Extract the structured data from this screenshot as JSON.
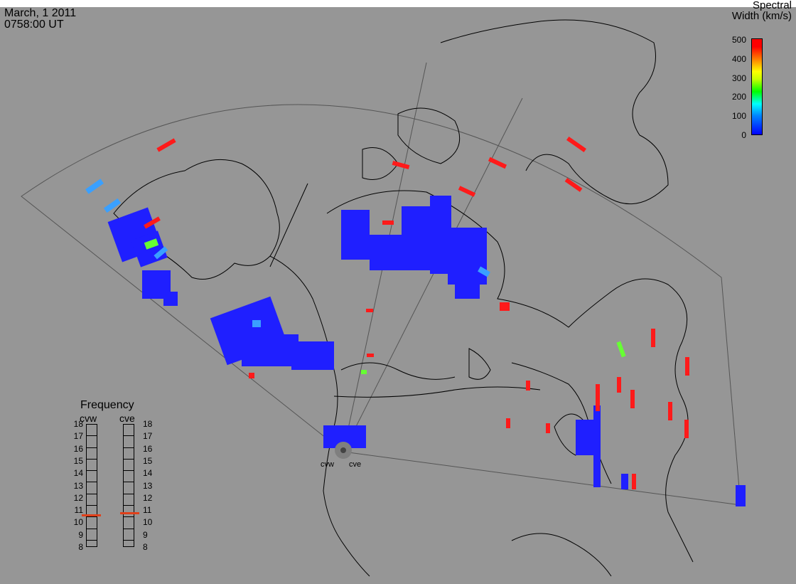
{
  "header": {
    "date": "March, 1 2011",
    "time": "0758:00 UT"
  },
  "colorbar": {
    "title_line1": "Spectral",
    "title_line2": "Width (km/s)",
    "ticks": [
      "500",
      "400",
      "300",
      "200",
      "100",
      "0"
    ],
    "range": [
      0,
      500
    ],
    "colors": {
      "low": "#0000ff",
      "mid": "#00ff00",
      "high": "#ff0000"
    }
  },
  "frequency_panel": {
    "title": "Frequency",
    "radars": [
      {
        "name": "cvw",
        "frequency_mhz": 10.6
      },
      {
        "name": "cve",
        "frequency_mhz": 10.8
      }
    ],
    "scale": [
      "18",
      "17",
      "16",
      "15",
      "14",
      "13",
      "12",
      "11",
      "10",
      "9",
      "8"
    ],
    "marker_color": "#e0401a"
  },
  "sites": {
    "west_label": "cvw",
    "east_label": "cve"
  },
  "map": {
    "background": "#969696",
    "coast_color": "#000000",
    "fov_outline_color": "#555555",
    "echo_colors": {
      "low_width": "#1f1fff",
      "high_width": "#ff1a1a",
      "medium_width": "#3aa0ff",
      "green": "#66ff33"
    }
  }
}
